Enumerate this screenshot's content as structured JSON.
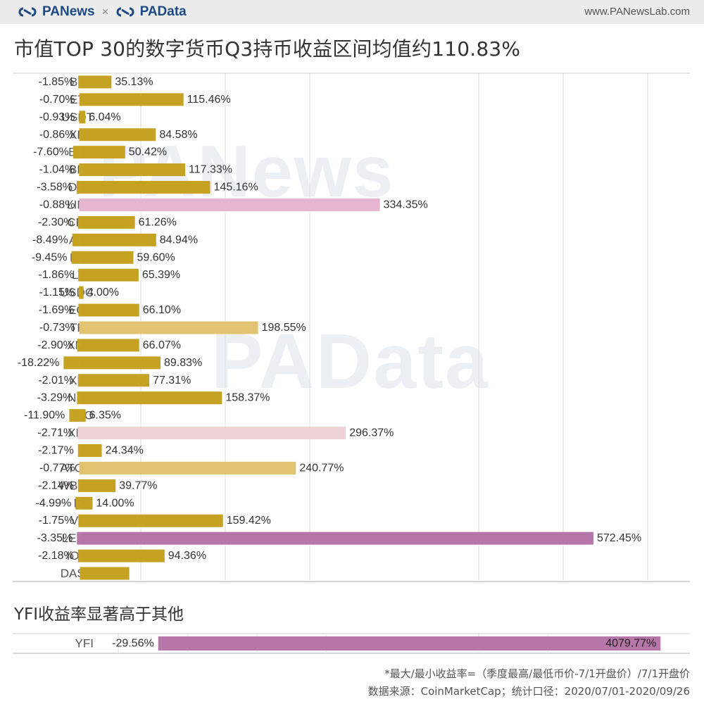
{
  "header": {
    "brand_left": "PANews",
    "brand_sep": "×",
    "brand_right": "PAData",
    "site": "www.PANewsLab.com"
  },
  "title": "市值TOP 30的数字货币Q3持币收益区间均值约110.83%",
  "subtitle": "YFI收益率显著高于其他",
  "footnotes": [
    "*最大/最小收益率=（季度最高/最低币价-7/1开盘价）/7/1开盘价",
    "数据来源：CoinMarketCap；统计口径：2020/07/01-2020/09/26"
  ],
  "watermarks": [
    "PANews",
    "PAData"
  ],
  "colors": {
    "bar_gold": "#c5a222",
    "bar_light_gold": "#e1c371",
    "bar_pink": "#e6b5cf",
    "bar_light_pink": "#eed3d6",
    "bar_purple": "#b676a8",
    "grid": "#e2e2e2",
    "brand": "#1d4a86"
  },
  "chart_data": [
    {
      "type": "bar",
      "orientation": "horizontal",
      "title": "市值TOP 30的数字货币Q3持币收益区间均值约110.83%",
      "categories": [
        "BTC",
        "ETH",
        "USDT",
        "XRP",
        "BCH",
        "BNB",
        "DOT",
        "LINK",
        "CRO",
        "ADA",
        "BSV",
        "LTC",
        "USDC",
        "EOS",
        "TRX",
        "XMR",
        "XTZ",
        "XLM",
        "NEO",
        "LEO",
        "XEM",
        "HT",
        "ATOM",
        "WBTC",
        "DAI",
        "VET",
        "LEND",
        "IOTA",
        "DASH"
      ],
      "series": [
        {
          "role": "min_return",
          "values": [
            -1.85,
            -0.7,
            -0.93,
            -0.86,
            -7.6,
            -1.04,
            -3.58,
            -0.88,
            -2.3,
            -8.49,
            -9.45,
            -1.86,
            -1.15,
            -1.69,
            -0.73,
            -2.9,
            -18.22,
            -2.01,
            -3.29,
            -11.9,
            -2.71,
            -2.17,
            -0.77,
            -2.14,
            -4.99,
            -1.75,
            -3.35,
            -2.18,
            null
          ],
          "labels": [
            "-1.85%",
            "-0.70%",
            "-0.93%",
            "-0.86%",
            "-7.60%",
            "-1.04%",
            "-3.58%",
            "-0.88%",
            "-2.30%",
            "-8.49%",
            "-9.45%",
            "-1.86%",
            "-1.15%",
            "-1.69%",
            "-0.73%",
            "-2.90%",
            "-18.22%",
            "-2.01%",
            "-3.29%",
            "-11.90%",
            "-2.71%",
            "-2.17%",
            "-0.77%",
            "-2.14%",
            "-4.99%",
            "-1.75%",
            "-3.35%",
            "-2.18%",
            ""
          ]
        },
        {
          "role": "max_return",
          "values": [
            35.13,
            115.46,
            6.04,
            84.58,
            50.42,
            117.33,
            145.16,
            334.35,
            61.26,
            84.94,
            59.6,
            65.39,
            4.0,
            66.1,
            198.55,
            66.07,
            89.83,
            77.31,
            158.37,
            6.35,
            296.37,
            24.34,
            240.77,
            39.77,
            14.0,
            159.42,
            572.45,
            94.36,
            55
          ],
          "labels": [
            "35.13%",
            "115.46%",
            "6.04%",
            "84.58%",
            "50.42%",
            "117.33%",
            "145.16%",
            "334.35%",
            "61.26%",
            "84.94%",
            "59.60%",
            "65.39%",
            "4.00%",
            "66.10%",
            "198.55%",
            "66.07%",
            "89.83%",
            "77.31%",
            "158.37%",
            "6.35%",
            "296.37%",
            "24.34%",
            "240.77%",
            "39.77%",
            "14.00%",
            "159.42%",
            "572.45%",
            "94.36%",
            ""
          ]
        }
      ],
      "bar_colors": [
        "gold",
        "gold",
        "gold",
        "gold",
        "gold",
        "gold",
        "gold",
        "pink",
        "gold",
        "gold",
        "gold",
        "gold",
        "gold",
        "gold",
        "light_gold",
        "gold",
        "gold",
        "gold",
        "gold",
        "gold",
        "light_pink",
        "gold",
        "light_gold",
        "gold",
        "gold",
        "gold",
        "purple",
        "gold",
        "gold"
      ],
      "xlim": [
        -75,
        680
      ],
      "grid": true
    },
    {
      "type": "bar",
      "orientation": "horizontal",
      "title": "YFI收益率显著高于其他",
      "categories": [
        "YFI"
      ],
      "series": [
        {
          "role": "min_return",
          "values": [
            -29.56
          ],
          "labels": [
            "-29.56%"
          ]
        },
        {
          "role": "max_return",
          "values": [
            4079.77
          ],
          "labels": [
            "4079.77%"
          ]
        }
      ],
      "bar_colors": [
        "purple"
      ],
      "xlim": [
        -1220,
        4320
      ],
      "grid": true
    }
  ]
}
